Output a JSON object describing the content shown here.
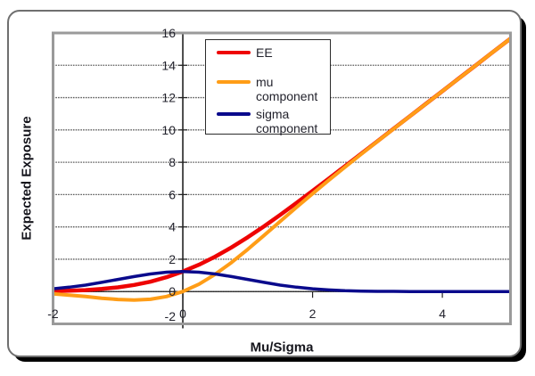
{
  "chart_data": {
    "type": "line",
    "title": "",
    "xlabel": "Mu/Sigma",
    "ylabel": "Expected Exposure",
    "xlim": [
      -2,
      5.05
    ],
    "ylim": [
      -2,
      16
    ],
    "x_ticks": [
      -2,
      0,
      2,
      4
    ],
    "y_ticks": [
      -2,
      0,
      2,
      4,
      6,
      8,
      10,
      12,
      14,
      16
    ],
    "grid": "horizontal-dotted",
    "legend_position": "top-center-inside",
    "x": [
      -2,
      -1.75,
      -1.5,
      -1.25,
      -1,
      -0.75,
      -0.5,
      -0.25,
      0,
      0.25,
      0.5,
      0.75,
      1,
      1.25,
      1.5,
      1.75,
      2,
      2.25,
      2.5,
      2.75,
      3,
      3.25,
      3.5,
      3.75,
      4,
      4.25,
      4.5,
      4.75,
      5,
      5.05
    ],
    "series": [
      {
        "name": "EE",
        "color": "#ee0404",
        "width": 4.5,
        "values": [
          0.03,
          0.05,
          0.09,
          0.16,
          0.26,
          0.41,
          0.61,
          0.89,
          1.24,
          1.66,
          2.16,
          2.73,
          3.36,
          4.03,
          4.74,
          5.48,
          6.23,
          6.99,
          7.76,
          8.53,
          9.3,
          10.08,
          10.85,
          11.63,
          12.4,
          13.18,
          13.95,
          14.73,
          15.5,
          15.66
        ]
      },
      {
        "name": "mu component",
        "color": "#ff9d17",
        "width": 4,
        "values": [
          -0.14,
          -0.22,
          -0.31,
          -0.41,
          -0.49,
          -0.53,
          -0.48,
          -0.31,
          0.0,
          0.46,
          1.07,
          1.8,
          2.61,
          3.47,
          4.34,
          5.21,
          6.06,
          6.89,
          7.7,
          8.5,
          9.29,
          10.07,
          10.85,
          11.62,
          12.4,
          13.17,
          13.95,
          14.73,
          15.5,
          15.66
        ]
      },
      {
        "name": "sigma component",
        "color": "#0a0a8c",
        "width": 3.5,
        "values": [
          0.17,
          0.27,
          0.4,
          0.57,
          0.75,
          0.93,
          1.09,
          1.2,
          1.24,
          1.2,
          1.09,
          0.93,
          0.75,
          0.57,
          0.4,
          0.27,
          0.17,
          0.1,
          0.05,
          0.03,
          0.01,
          0.01,
          0.0,
          0.0,
          0.0,
          0.0,
          0.0,
          0.0,
          0.0,
          0.0
        ]
      }
    ],
    "colors": {
      "frame_border": "#6f6f6f",
      "frame_shadow": "#000000",
      "plot_border": "#9a9a9a",
      "gridline": "#595959",
      "axis_line": "#222222",
      "tick_text": "#23232d",
      "title_text": "#15151c",
      "background": "#ffffff"
    }
  }
}
